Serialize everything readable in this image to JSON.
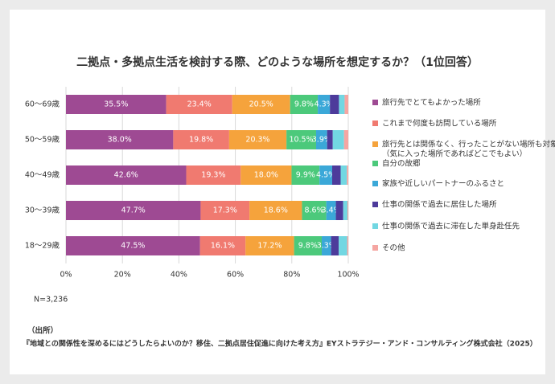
{
  "chart_data": {
    "type": "stacked-barh",
    "title": "二拠点・多拠点生活を検討する際、どのような場所を想定するか？（1位回答）",
    "categories": [
      "60～69歳",
      "50～59歳",
      "40～49歳",
      "30～39歳",
      "18～29歳"
    ],
    "series": [
      {
        "name": "旅行先でとてもよかった場所",
        "color": "#9e4a93",
        "values": [
          35.5,
          38.0,
          42.6,
          47.7,
          47.5
        ],
        "value_labels": [
          "35.5%",
          "38.0%",
          "42.6%",
          "47.7%",
          "47.5%"
        ]
      },
      {
        "name": "これまで何度も訪問している場所",
        "color": "#f07a70",
        "values": [
          23.4,
          19.8,
          19.3,
          17.3,
          16.1
        ],
        "value_labels": [
          "23.4%",
          "19.8%",
          "19.3%",
          "17.3%",
          "16.1%"
        ]
      },
      {
        "name": [
          "旅行先とは関係なく、行ったことがない場所も対象",
          "（気に入った場所であればどこでもよい）"
        ],
        "color": "#f5a33c",
        "values": [
          20.5,
          20.3,
          18.0,
          18.6,
          17.2
        ],
        "value_labels": [
          "20.5%",
          "20.3%",
          "18.0%",
          "18.6%",
          "17.2%"
        ]
      },
      {
        "name": "自分の故郷",
        "color": "#4cc97b",
        "values": [
          9.8,
          10.5,
          9.9,
          8.6,
          9.8
        ],
        "value_labels": [
          "9.8%",
          "10.5%",
          "9.9%",
          "8.6%",
          "9.8%"
        ]
      },
      {
        "name": "家族や近しいパートナーのふるさと",
        "color": "#3ba8d8",
        "values": [
          4.3,
          3.9,
          4.5,
          3.4,
          3.3
        ],
        "value_labels": [
          "4.3%",
          "3.9%",
          "4.5%",
          "3.4%",
          "3.3%"
        ]
      },
      {
        "name": "仕事の関係で過去に居住した場所",
        "color": "#4d3b9b",
        "values": [
          3.2,
          2.0,
          3.0,
          2.6,
          2.7
        ]
      },
      {
        "name": "仕事の関係で過去に滞在した単身赴任先",
        "color": "#72d7e2",
        "values": [
          2.0,
          4.0,
          2.2,
          1.5,
          3.0
        ]
      },
      {
        "name": "その他",
        "color": "#f5a6a2",
        "values": [
          1.3,
          1.5,
          0.5,
          0.3,
          0.4
        ]
      }
    ],
    "xlim": [
      0,
      100
    ],
    "xticks": [
      {
        "value": 0,
        "label": "0%"
      },
      {
        "value": 20,
        "label": "20%"
      },
      {
        "value": 40,
        "label": "40%"
      },
      {
        "value": 60,
        "label": "60%"
      },
      {
        "value": 80,
        "label": "80%"
      },
      {
        "value": 100,
        "label": "100%"
      }
    ],
    "grid": true,
    "note": "N=3,236",
    "source_heading": "（出所）",
    "source": "『地域との関係性を深めるにはどうしたらよいのか？移住、二拠点居住促進に向けた考え方』EYストラテジー・アンド・コンサルティング株式会社（2025）"
  }
}
